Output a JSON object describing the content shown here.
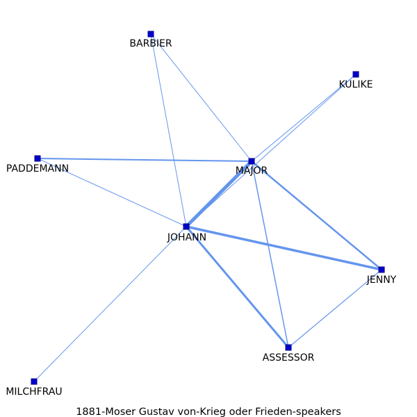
{
  "title": "1881-Moser Gustav von-Krieg oder Frieden-speakers",
  "colors": {
    "edge": "#6495ed",
    "node_fill": "#0000cd",
    "node_stroke": "#00008b",
    "label": "#000000",
    "background": "#ffffff"
  },
  "nodes": [
    {
      "id": "BARBIER",
      "label": "BARBIER"
    },
    {
      "id": "KULIKE",
      "label": "KULIKE"
    },
    {
      "id": "PADDEMANN",
      "label": "PADDEMANN"
    },
    {
      "id": "MAJOR",
      "label": "MAJOR"
    },
    {
      "id": "JOHANN",
      "label": "JOHANN"
    },
    {
      "id": "JENNY",
      "label": "JENNY"
    },
    {
      "id": "ASSESSOR",
      "label": "ASSESSOR"
    },
    {
      "id": "MILCHFRAU",
      "label": "MILCHFRAU"
    }
  ],
  "edges": [
    {
      "source": "BARBIER",
      "target": "MAJOR",
      "weight": 1
    },
    {
      "source": "BARBIER",
      "target": "JOHANN",
      "weight": 1
    },
    {
      "source": "KULIKE",
      "target": "MAJOR",
      "weight": 1
    },
    {
      "source": "KULIKE",
      "target": "JOHANN",
      "weight": 1
    },
    {
      "source": "PADDEMANN",
      "target": "MAJOR",
      "weight": 2
    },
    {
      "source": "PADDEMANN",
      "target": "JOHANN",
      "weight": 1
    },
    {
      "source": "MAJOR",
      "target": "JOHANN",
      "weight": 5
    },
    {
      "source": "MAJOR",
      "target": "JENNY",
      "weight": 2.5
    },
    {
      "source": "MAJOR",
      "target": "ASSESSOR",
      "weight": 1.5
    },
    {
      "source": "JOHANN",
      "target": "JENNY",
      "weight": 3.5
    },
    {
      "source": "JOHANN",
      "target": "ASSESSOR",
      "weight": 3
    },
    {
      "source": "JOHANN",
      "target": "MILCHFRAU",
      "weight": 1
    },
    {
      "source": "JENNY",
      "target": "ASSESSOR",
      "weight": 1.2
    }
  ]
}
